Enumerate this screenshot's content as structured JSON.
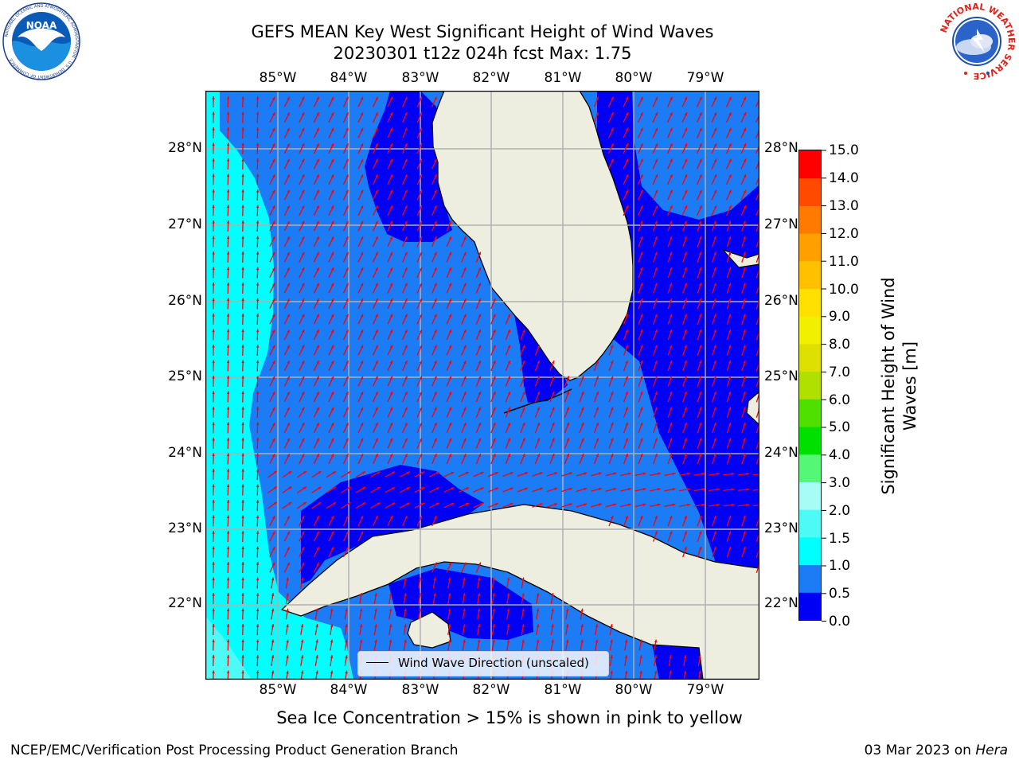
{
  "title": {
    "line1": "GEFS MEAN Key West Significant Height of Wind Waves",
    "line2": "20230301 t12z 024h fcst   Max: 1.75"
  },
  "map": {
    "lon_labels": [
      "85°W",
      "84°W",
      "83°W",
      "82°W",
      "81°W",
      "80°W",
      "79°W"
    ],
    "lat_labels": [
      "28°N",
      "27°N",
      "26°N",
      "25°N",
      "24°N",
      "23°N",
      "22°N"
    ],
    "land_color": "#eeeee0",
    "arrow_color": "#ff0000",
    "grid_color": "#b0b0b0"
  },
  "legend": {
    "label": "Wind Wave Direction (unscaled)"
  },
  "colorbar": {
    "label": "Significant Height of Wind Waves [m]",
    "label_line1": "Significant Height of Wind",
    "label_line2": "Waves [m]",
    "ticks": [
      "15.0",
      "14.0",
      "13.0",
      "12.0",
      "11.0",
      "10.0",
      "9.0",
      "8.0",
      "7.0",
      "6.0",
      "5.0",
      "4.0",
      "3.0",
      "2.0",
      "1.5",
      "1.0",
      "0.5",
      "0.0"
    ],
    "colors_bottom_to_top": [
      "#0000f5",
      "#1c7cf5",
      "#00ffff",
      "#4dfaf6",
      "#a7fcf5",
      "#55f777",
      "#00e000",
      "#50e000",
      "#b0e000",
      "#dde000",
      "#f0f000",
      "#ffe000",
      "#ffc000",
      "#ffa000",
      "#ff7a00",
      "#ff4a00",
      "#ff0000"
    ]
  },
  "sea_ice_note": "Sea Ice Concentration > 15% is shown in pink to yellow",
  "footer": {
    "left": "NCEP/EMC/Verification Post Processing Product Generation Branch",
    "date": "03 Mar 2023 on ",
    "machine": "Hera"
  },
  "logos": {
    "noaa_text": "NOAA",
    "noaa_ring": "NATIONAL OCEANIC AND ATMOSPHERIC ADMINISTRATION · U.S. DEPARTMENT OF COMMERCE",
    "nws_ring": "NATIONAL WEATHER SERVICE"
  }
}
